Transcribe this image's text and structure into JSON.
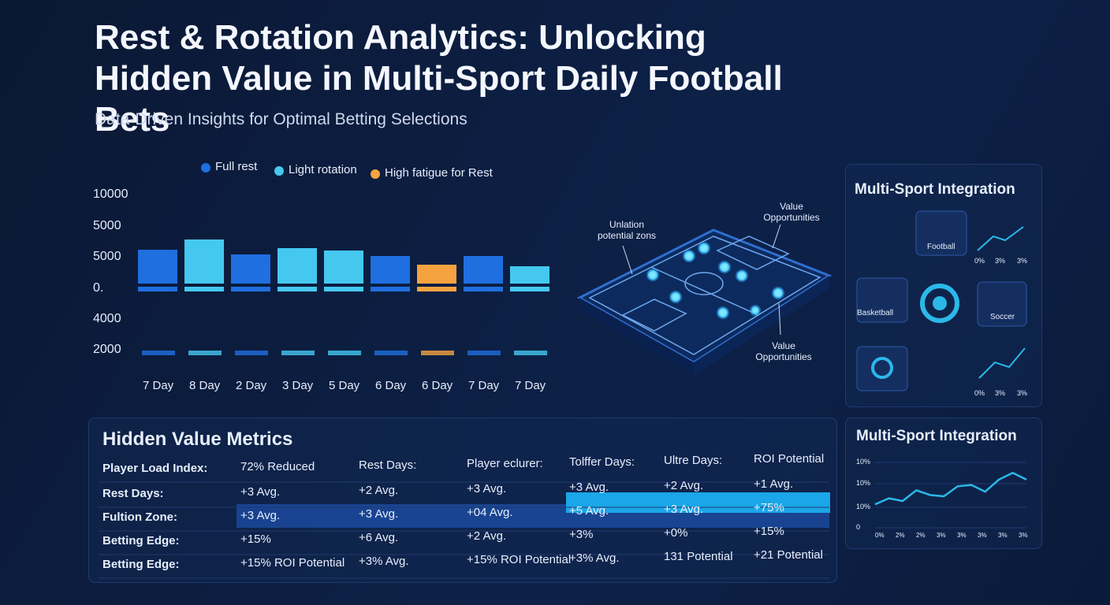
{
  "header": {
    "title": "Rest & Rotation Analytics: Unlocking Hidden Value in Multi-Sport Daily Football Bets",
    "subtitle": "Data-Driven Insights for Optimal Betting Selections"
  },
  "rest_chart": {
    "legend": [
      {
        "name": "Full rest",
        "color": "#1f6fe0"
      },
      {
        "name": "Light rotation",
        "color": "#45c8f0"
      },
      {
        "name": "High fatigue for Rest",
        "color": "#f5a340"
      }
    ],
    "y_labels": [
      "10000",
      "5000",
      "5000",
      "0.",
      "4000",
      "2000"
    ],
    "categories": [
      "7 Day",
      "8 Day",
      "2 Day",
      "3 Day",
      "5 Day",
      "6 Day",
      "6 Day",
      "7 Day",
      "7 Day"
    ],
    "bar_colors": [
      "#1f6fe0",
      "#45c8f0",
      "#1f6fe0",
      "#45c8f0",
      "#45c8f0",
      "#1f6fe0",
      "#f5a340",
      "#1f6fe0",
      "#45c8f0"
    ]
  },
  "pitch": {
    "labels": [
      "Unlation potential zons",
      "Value Opportunities",
      "Value Opportunities"
    ]
  },
  "integration": {
    "title": "Multi-Sport Integration",
    "sports": [
      "Football",
      "Basketball",
      "Soccer"
    ],
    "axis_labels": [
      "0%",
      "3%",
      "3%"
    ]
  },
  "metrics": {
    "title": "Hidden Value Metrics",
    "rows": [
      [
        "Player Load Index:",
        "72% Reduced",
        "Rest Days:",
        "Player eclurer:",
        "Tolffer Days:",
        "Ultre Days:",
        "ROI Potential"
      ],
      [
        "Rest Days:",
        "+3 Avg.",
        "+2 Avg.",
        "+3 Avg.",
        "+3 Avg.",
        "+2 Avg.",
        "+1 Avg."
      ],
      [
        "Fultion Zone:",
        "+3 Avg.",
        "+3 Avg.",
        "+04 Avg.",
        "+5 Avg.",
        "+3 Avg.",
        "+75%"
      ],
      [
        "Betting Edge:",
        "+15%",
        "+6 Avg.",
        "+2 Avg.",
        "+3%",
        "+0%",
        "+15%"
      ],
      [
        "Betting Edge:",
        "+15% ROI Potential",
        "+3% Avg.",
        "+15% ROI Potential",
        "+3% Avg.",
        "131 Potential",
        "+21 Potential"
      ]
    ]
  },
  "trend": {
    "title": "Multi-Sport Integration",
    "y_labels": [
      "10%",
      "10%",
      "10%",
      "0"
    ],
    "x_labels": [
      "0%",
      "2%",
      "2%",
      "3%",
      "3%",
      "3%",
      "3%",
      "3%"
    ],
    "values": [
      35,
      44,
      40,
      56,
      49,
      47,
      62,
      64,
      54,
      72,
      82,
      72
    ],
    "ylim": [
      0,
      100
    ],
    "color": "#2bb8e8"
  }
}
